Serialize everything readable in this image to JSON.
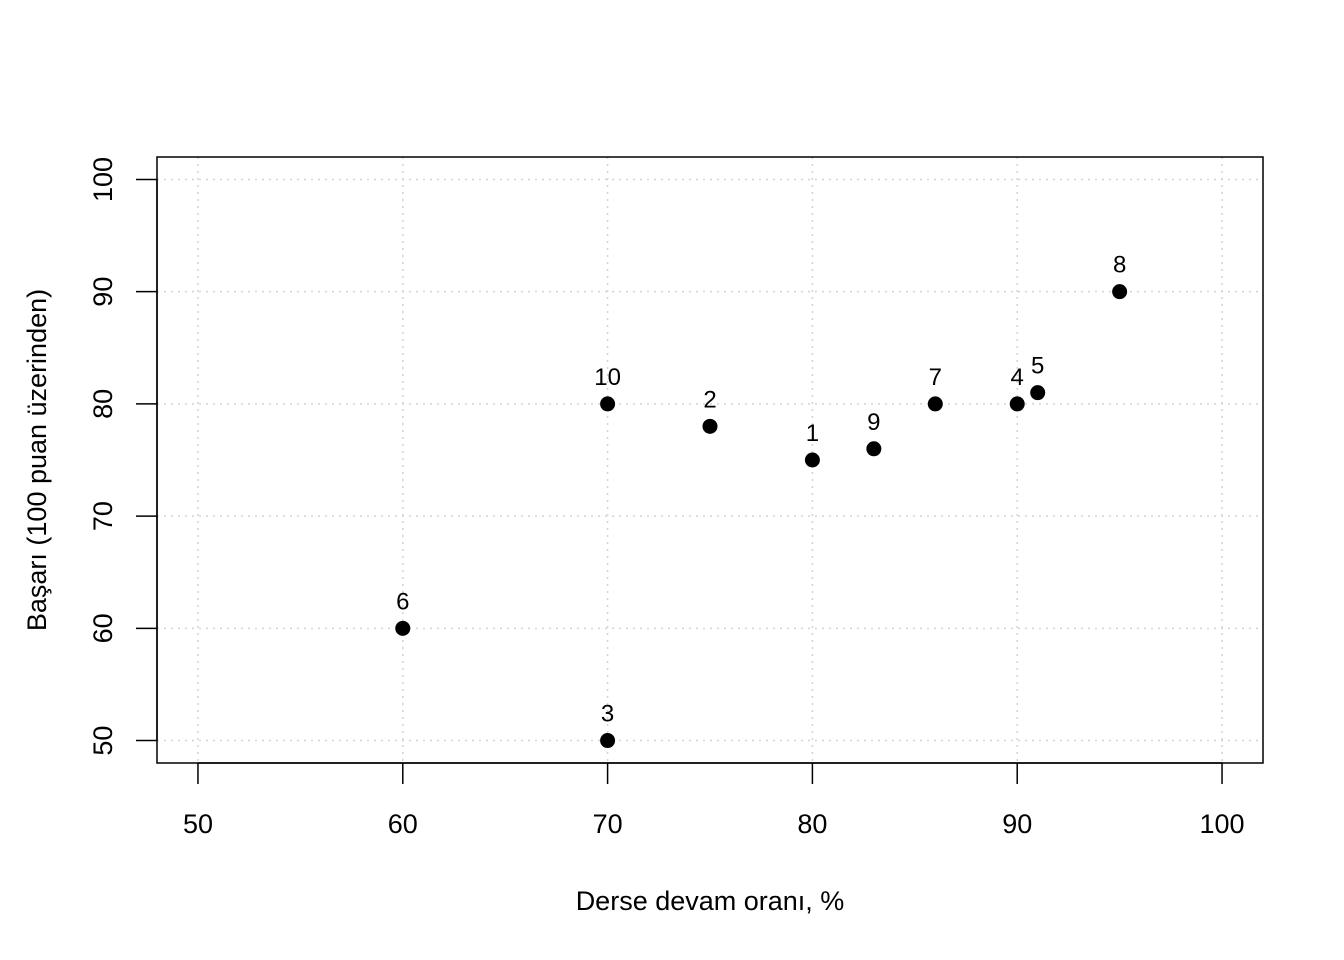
{
  "chart_data": {
    "type": "scatter",
    "title": "",
    "xlabel": "Derse devam oranı, %",
    "ylabel": "Başarı (100 puan üzerinden)",
    "xlim": [
      48,
      102
    ],
    "ylim": [
      48,
      102
    ],
    "x_ticks": [
      50,
      60,
      70,
      80,
      90,
      100
    ],
    "y_ticks": [
      50,
      60,
      70,
      80,
      90,
      100
    ],
    "grid": true,
    "legend": "none",
    "point_color": "#000000",
    "grid_color": "#d3d3d3",
    "points": [
      {
        "label": "1",
        "x": 80,
        "y": 75
      },
      {
        "label": "2",
        "x": 75,
        "y": 78
      },
      {
        "label": "3",
        "x": 70,
        "y": 50
      },
      {
        "label": "4",
        "x": 90,
        "y": 80
      },
      {
        "label": "5",
        "x": 91,
        "y": 81
      },
      {
        "label": "6",
        "x": 60,
        "y": 60
      },
      {
        "label": "7",
        "x": 86,
        "y": 80
      },
      {
        "label": "8",
        "x": 95,
        "y": 90
      },
      {
        "label": "9",
        "x": 83,
        "y": 76
      },
      {
        "label": "10",
        "x": 70,
        "y": 80
      }
    ]
  }
}
